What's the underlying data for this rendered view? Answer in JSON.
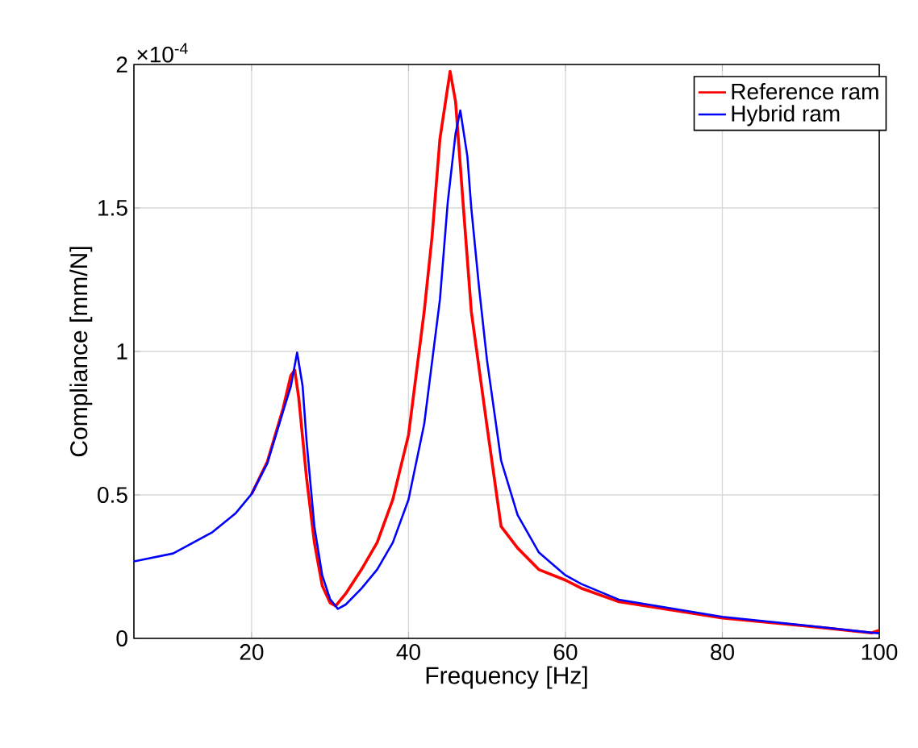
{
  "chart_data": {
    "type": "line",
    "xlabel": "Frequency [Hz]",
    "ylabel": "Compliance [mm/N]",
    "annotations": [
      "×10$^{-4}$"
    ],
    "xlim": [
      5,
      100
    ],
    "ylim": [
      0,
      2
    ],
    "xticks": [
      20,
      40,
      60,
      80,
      100
    ],
    "yticks": [
      0,
      0.5,
      1,
      1.5,
      2
    ],
    "grid": true,
    "legend": "top right",
    "marker": "none",
    "line_style": "solid",
    "series": [
      {
        "name": "Reference ram",
        "color": "#ff0000",
        "x": [
          20,
          22,
          24,
          25,
          25.5,
          26,
          27,
          28,
          29,
          30,
          30.7,
          32,
          34,
          36,
          38,
          40,
          42,
          43,
          44,
          45.3,
          46,
          47,
          48,
          50,
          51.8,
          53.9,
          56.6,
          60,
          62,
          66.8,
          80,
          90.7,
          99,
          100
        ],
        "values": [
          0.503,
          0.615,
          0.8,
          0.916,
          0.935,
          0.84,
          0.56,
          0.334,
          0.184,
          0.124,
          0.113,
          0.156,
          0.24,
          0.334,
          0.484,
          0.709,
          1.14,
          1.4,
          1.74,
          1.976,
          1.87,
          1.5,
          1.14,
          0.74,
          0.39,
          0.315,
          0.24,
          0.203,
          0.175,
          0.128,
          0.071,
          0.043,
          0.019,
          0.028
        ]
      },
      {
        "name": "Hybrid ram",
        "color": "#0000ff",
        "x": [
          5,
          10,
          15,
          18,
          20,
          22,
          24,
          25,
          25.8,
          26.5,
          27,
          28,
          29,
          30,
          31,
          32,
          34,
          36,
          38,
          40,
          42,
          44,
          45,
          46,
          46.6,
          47.5,
          48,
          49,
          50,
          51.8,
          53.9,
          56.6,
          60,
          62,
          66.8,
          80,
          90.7,
          99,
          100
        ],
        "values": [
          0.268,
          0.296,
          0.37,
          0.437,
          0.503,
          0.61,
          0.79,
          0.878,
          0.996,
          0.88,
          0.69,
          0.39,
          0.22,
          0.137,
          0.103,
          0.118,
          0.174,
          0.24,
          0.334,
          0.484,
          0.747,
          1.18,
          1.52,
          1.76,
          1.84,
          1.68,
          1.5,
          1.22,
          0.97,
          0.62,
          0.43,
          0.3,
          0.22,
          0.19,
          0.135,
          0.075,
          0.045,
          0.02,
          0.018
        ]
      }
    ]
  }
}
